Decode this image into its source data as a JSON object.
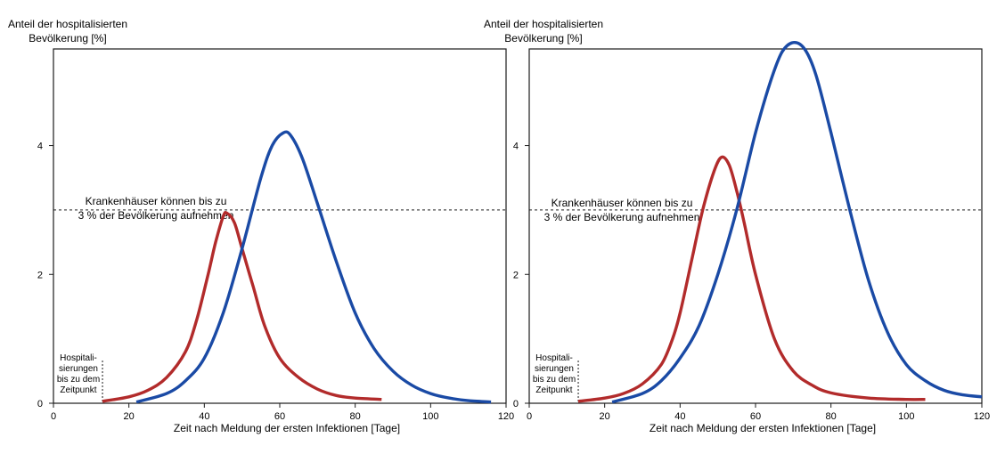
{
  "chart_data": [
    {
      "type": "line",
      "ylabel_lines": [
        "Anteil der hospitalisierten",
        "Bevölkerung [%]"
      ],
      "xlabel": "Zeit nach Meldung der ersten Infektionen [Tage]",
      "xlim": [
        0,
        120
      ],
      "ylim": [
        0,
        5.5
      ],
      "xticks": [
        "0",
        "20",
        "40",
        "60",
        "80",
        "100",
        "120"
      ],
      "yticks": [
        "0",
        "2",
        "4"
      ],
      "threshold": 3,
      "threshold_label_lines": [
        "Krankenhäuser können bis zu",
        "3 % der Bevölkerung aufnehmen"
      ],
      "start_marker_x": 13,
      "start_marker_label_lines": [
        "Hospitali-",
        "sierungen",
        "bis zu dem",
        "Zeitpunkt"
      ],
      "series": [
        {
          "color": "#b22b2b",
          "x": [
            13,
            20,
            25,
            30,
            35,
            38,
            41,
            43,
            45,
            46,
            48,
            50,
            53,
            56,
            60,
            65,
            70,
            75,
            80,
            87
          ],
          "y": [
            0.03,
            0.1,
            0.2,
            0.4,
            0.8,
            1.3,
            2.0,
            2.5,
            2.9,
            2.95,
            2.8,
            2.4,
            1.8,
            1.2,
            0.7,
            0.4,
            0.22,
            0.12,
            0.08,
            0.06
          ]
        },
        {
          "color": "#1a4aa5",
          "x": [
            22,
            30,
            35,
            40,
            45,
            50,
            55,
            58,
            61,
            63,
            66,
            70,
            75,
            80,
            85,
            90,
            95,
            100,
            105,
            110,
            116
          ],
          "y": [
            0.02,
            0.15,
            0.35,
            0.7,
            1.4,
            2.4,
            3.5,
            4.0,
            4.2,
            4.15,
            3.8,
            3.1,
            2.2,
            1.4,
            0.85,
            0.5,
            0.28,
            0.15,
            0.08,
            0.04,
            0.02
          ]
        }
      ]
    },
    {
      "type": "line",
      "ylabel_lines": [
        "Anteil der hospitalisierten",
        "Bevölkerung [%]"
      ],
      "xlabel": "Zeit nach Meldung der ersten Infektionen [Tage]",
      "xlim": [
        0,
        120
      ],
      "ylim": [
        0,
        5.5
      ],
      "xticks": [
        "0",
        "20",
        "40",
        "60",
        "80",
        "100",
        "120"
      ],
      "yticks": [
        "0",
        "2",
        "4"
      ],
      "threshold": 3,
      "threshold_label_lines": [
        "Krankenhäuser können bis zu",
        "3 % der Bevölkerung aufnehmen"
      ],
      "start_marker_x": 13,
      "start_marker_label_lines": [
        "Hospitali-",
        "sierungen",
        "bis zu dem",
        "Zeitpunkt"
      ],
      "series": [
        {
          "color": "#b22b2b",
          "x": [
            13,
            20,
            25,
            30,
            35,
            38,
            40,
            43,
            46,
            49,
            51,
            53,
            55,
            57,
            60,
            65,
            70,
            75,
            80,
            90,
            100,
            105
          ],
          "y": [
            0.03,
            0.08,
            0.15,
            0.3,
            0.6,
            1.0,
            1.4,
            2.2,
            3.0,
            3.6,
            3.82,
            3.7,
            3.3,
            2.8,
            2.0,
            1.0,
            0.5,
            0.28,
            0.16,
            0.08,
            0.06,
            0.06
          ]
        },
        {
          "color": "#1a4aa5",
          "x": [
            22,
            30,
            35,
            40,
            45,
            50,
            55,
            60,
            64,
            67,
            70,
            73,
            76,
            80,
            85,
            90,
            95,
            100,
            105,
            110,
            115,
            120
          ],
          "y": [
            0.02,
            0.15,
            0.35,
            0.7,
            1.2,
            2.0,
            3.0,
            4.2,
            5.0,
            5.45,
            5.6,
            5.5,
            5.1,
            4.2,
            3.0,
            1.9,
            1.1,
            0.6,
            0.35,
            0.2,
            0.13,
            0.1
          ]
        }
      ]
    }
  ]
}
